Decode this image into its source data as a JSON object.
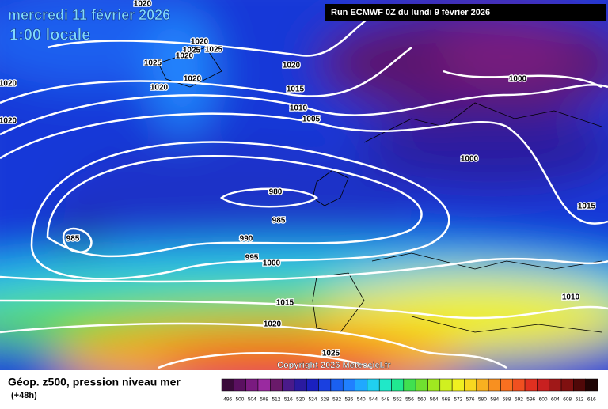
{
  "header": {
    "title": "mercredi 11 février 2026",
    "time": "1:00 locale",
    "run": "Run ECMWF 0Z du lundi 9 février 2026"
  },
  "isobar_labels": [
    1020,
    1020,
    1025,
    1025,
    1025,
    1020,
    1020,
    1020,
    1020,
    1020,
    1020,
    1015,
    1010,
    1005,
    1000,
    1000,
    980,
    985,
    985,
    990,
    995,
    1000,
    1015,
    1010,
    1015,
    1020,
    1025
  ],
  "copyright": "Copyright 2026 Meteociel.fr",
  "legend": {
    "title": "Géop. z500, pression niveau mer",
    "lead": "(+48h)",
    "labels": [
      496,
      500,
      504,
      508,
      512,
      516,
      520,
      524,
      528,
      532,
      536,
      540,
      544,
      548,
      552,
      556,
      560,
      564,
      568,
      572,
      576,
      580,
      584,
      588,
      592,
      596,
      600,
      604,
      608,
      612,
      616
    ],
    "colors": [
      "#3a0a3a",
      "#5a1060",
      "#7a1a80",
      "#9a2aa0",
      "#6a1a6a",
      "#4a1a8a",
      "#2a1aa0",
      "#1a20c0",
      "#1a40e0",
      "#1a60f0",
      "#2080ff",
      "#20a8ff",
      "#20d0f0",
      "#20e8c8",
      "#20e890",
      "#40e050",
      "#70e030",
      "#a0e820",
      "#d0f020",
      "#f0f020",
      "#f8d820",
      "#f8b020",
      "#f89020",
      "#f87020",
      "#f05020",
      "#e03020",
      "#c82020",
      "#a01818",
      "#801010",
      "#500808",
      "#200404"
    ]
  }
}
